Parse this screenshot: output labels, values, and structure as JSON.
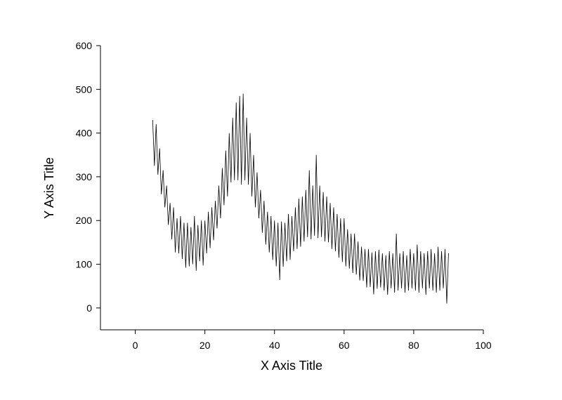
{
  "chart_data": {
    "type": "line",
    "x_label": "X Axis Title",
    "y_label": "Y Axis Title",
    "x": [
      5,
      5.5,
      6,
      6.5,
      7,
      7.5,
      8,
      8.5,
      9,
      9.5,
      10,
      10.5,
      11,
      11.5,
      12,
      12.5,
      13,
      13.5,
      14,
      14.5,
      15,
      15.5,
      16,
      16.5,
      17,
      17.5,
      18,
      18.5,
      19,
      19.5,
      20,
      20.5,
      21,
      21.5,
      22,
      22.5,
      23,
      23.5,
      24,
      24.5,
      25,
      25.5,
      26,
      26.5,
      27,
      27.5,
      28,
      28.5,
      29,
      29.5,
      30,
      30.5,
      31,
      31.5,
      32,
      32.5,
      33,
      33.5,
      34,
      34.5,
      35,
      35.5,
      36,
      36.5,
      37,
      37.5,
      38,
      38.5,
      39,
      39.5,
      40,
      40.5,
      41,
      41.5,
      42,
      42.5,
      43,
      43.5,
      44,
      44.5,
      45,
      45.5,
      46,
      46.5,
      47,
      47.5,
      48,
      48.5,
      49,
      49.5,
      50,
      50.5,
      51,
      51.5,
      52,
      52.5,
      53,
      53.5,
      54,
      54.5,
      55,
      55.5,
      56,
      56.5,
      57,
      57.5,
      58,
      58.5,
      59,
      59.5,
      60,
      60.5,
      61,
      61.5,
      62,
      62.5,
      63,
      63.5,
      64,
      64.5,
      65,
      65.5,
      66,
      66.5,
      67,
      67.5,
      68,
      68.5,
      69,
      69.5,
      70,
      70.5,
      71,
      71.5,
      72,
      72.5,
      73,
      73.5,
      74,
      74.5,
      75,
      75.5,
      76,
      76.5,
      77,
      77.5,
      78,
      78.5,
      79,
      79.5,
      80,
      80.5,
      81,
      81.5,
      82,
      82.5,
      83,
      83.5,
      84,
      84.5,
      85,
      85.5,
      86,
      86.5,
      87,
      87.5,
      88,
      88.5,
      89,
      89.5,
      90
    ],
    "values": [
      430,
      325,
      420,
      305,
      365,
      260,
      315,
      230,
      280,
      190,
      240,
      157,
      230,
      127,
      205,
      125,
      210,
      112,
      195,
      92,
      195,
      95,
      185,
      100,
      210,
      85,
      190,
      107,
      200,
      97,
      200,
      125,
      220,
      137,
      230,
      155,
      245,
      182,
      280,
      205,
      320,
      235,
      360,
      255,
      400,
      287,
      435,
      292,
      470,
      292,
      485,
      282,
      490,
      292,
      435,
      282,
      400,
      255,
      350,
      230,
      310,
      205,
      270,
      172,
      245,
      145,
      220,
      127,
      210,
      110,
      200,
      95,
      195,
      64,
      198,
      94,
      195,
      107,
      215,
      110,
      210,
      130,
      230,
      135,
      250,
      140,
      255,
      152,
      270,
      162,
      315,
      157,
      280,
      165,
      350,
      160,
      280,
      162,
      265,
      152,
      255,
      150,
      240,
      135,
      230,
      130,
      215,
      115,
      205,
      105,
      205,
      95,
      180,
      90,
      170,
      80,
      170,
      76,
      152,
      63,
      140,
      62,
      135,
      47,
      135,
      48,
      127,
      31,
      130,
      44,
      133,
      47,
      125,
      40,
      120,
      30,
      130,
      45,
      125,
      35,
      170,
      40,
      125,
      45,
      130,
      35,
      120,
      40,
      135,
      45,
      125,
      40,
      145,
      35,
      130,
      45,
      125,
      30,
      130,
      45,
      135,
      40,
      125,
      35,
      140,
      40,
      130,
      45,
      135,
      10,
      125
    ],
    "color": "#000000",
    "xlim": [
      -10,
      100
    ],
    "xticks": [
      0,
      20,
      40,
      60,
      80,
      100
    ],
    "ylim": [
      -50,
      600
    ],
    "yticks": [
      0,
      100,
      200,
      300,
      400,
      500,
      600
    ]
  }
}
